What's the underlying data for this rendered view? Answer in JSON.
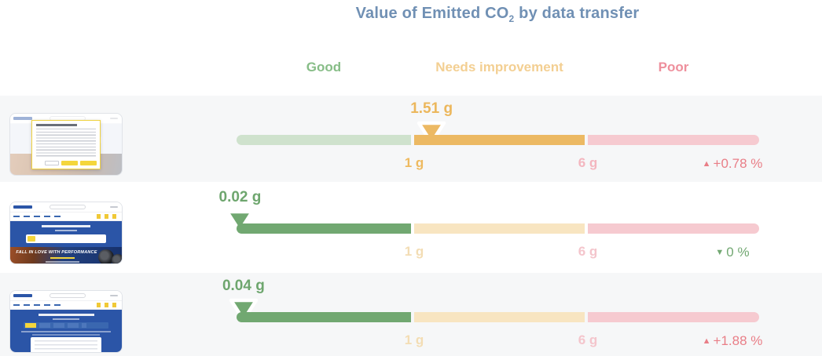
{
  "title": {
    "prefix": "Value of Emitted CO",
    "subscript": "2",
    "suffix": " by data transfer"
  },
  "colors": {
    "title_blue": "#7090b4",
    "good_active": "#71a871",
    "good_faded": "#cfe2cd",
    "good_header": "#87bd87",
    "warn_active": "#ecb963",
    "warn_faded": "#f8e5c1",
    "warn_header": "#f3cf92",
    "poor_faded": "#f6cad0",
    "poor_header": "#ee8f9c",
    "pct_up_red": "#e97e87",
    "pct_down_green": "#72a872",
    "row_background": "#f6f7f8",
    "michelin_blue": "#2b55a7",
    "michelin_yellow": "#f4d63c"
  },
  "chart_data": {
    "type": "bar",
    "subtype": "bullet-gauge-per-row",
    "title": "Value of Emitted CO2 by data transfer",
    "unit": "g",
    "zone_labels": [
      "Good",
      "Needs improvement",
      "Poor"
    ],
    "scale": {
      "good_range_g": [
        0,
        1
      ],
      "needs_improvement_range_g": [
        1,
        6
      ],
      "poor_range_g": "6+",
      "tick_labels": [
        "1 g",
        "6 g"
      ]
    },
    "rows": [
      {
        "thumbnail": "webpage-with-cookie-consent-modal",
        "value_g": 1.51,
        "value_label": "1.51 g",
        "zone": "needs-improvement",
        "tick_1": "1 g",
        "tick_6": "6 g",
        "change": {
          "arrow": "▲",
          "label": "+0.78 %",
          "direction": "up",
          "color": "red"
        }
      },
      {
        "thumbnail": "webpage-homepage-hero",
        "hero_text": "FALL IN LOVE WITH PERFORMANCE",
        "value_g": 0.02,
        "value_label": "0.02 g",
        "zone": "good",
        "tick_1": "1 g",
        "tick_6": "6 g",
        "change": {
          "arrow": "▼",
          "label": "0 %",
          "direction": "down",
          "color": "green"
        }
      },
      {
        "thumbnail": "webpage-listing-with-dropdown",
        "value_g": 0.04,
        "value_label": "0.04 g",
        "zone": "good",
        "tick_1": "1 g",
        "tick_6": "6 g",
        "change": {
          "arrow": "▲",
          "label": "+1.88 %",
          "direction": "up",
          "color": "red"
        }
      }
    ]
  }
}
